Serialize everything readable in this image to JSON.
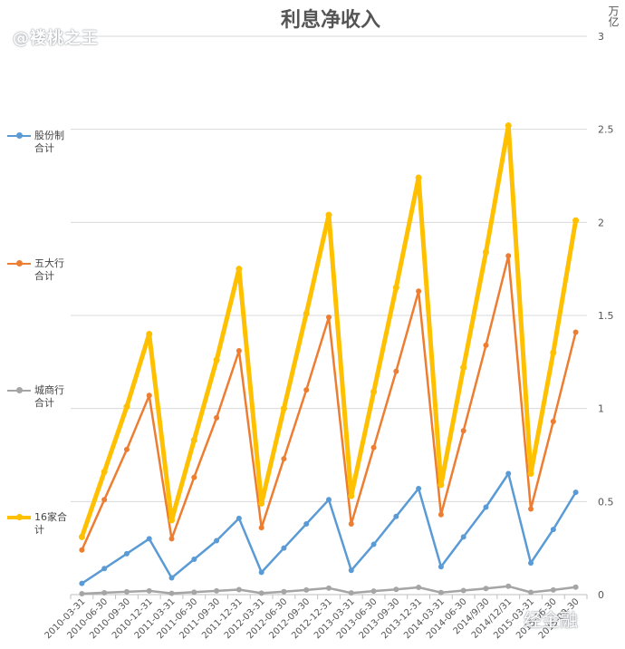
{
  "watermark": "@褛桃之王",
  "watermark_br": "经金融",
  "unit": "万亿",
  "chart_data": {
    "type": "line",
    "title": "利息净收入",
    "xlabel": "",
    "ylabel": "万亿",
    "ylim": [
      0,
      3
    ],
    "yticks": [
      "0",
      "0.5",
      "1",
      "1.5",
      "2",
      "2.5",
      "3"
    ],
    "grid": true,
    "legend_position": "left",
    "categories": [
      "2010-03-31",
      "2010-06-30",
      "2010-09-30",
      "2010-12-31",
      "2011-03-31",
      "2011-06-30",
      "2011-09-30",
      "2011-12-31",
      "2012-03-31",
      "2012-06-30",
      "2012-09-30",
      "2012-12-31",
      "2013-03-31",
      "2013-06-30",
      "2013-09-30",
      "2013-12-31",
      "2014-03-31",
      "2014-06-30",
      "2014/9/30",
      "2014/12/31",
      "2015-03-31",
      "2015-06-30",
      "2015-09-30"
    ],
    "series": [
      {
        "name": "股份制合计",
        "label": "股份制\n合计",
        "color": "#5b9bd5",
        "width": 2.5,
        "values": [
          0.06,
          0.14,
          0.22,
          0.3,
          0.09,
          0.19,
          0.29,
          0.41,
          0.12,
          0.25,
          0.38,
          0.51,
          0.13,
          0.27,
          0.42,
          0.57,
          0.15,
          0.31,
          0.47,
          0.65,
          0.17,
          0.35,
          0.55
        ]
      },
      {
        "name": "五大行合计",
        "label": "五大行\n合计",
        "color": "#ed7d31",
        "width": 2.5,
        "values": [
          0.24,
          0.51,
          0.78,
          1.07,
          0.3,
          0.63,
          0.95,
          1.31,
          0.36,
          0.73,
          1.1,
          1.49,
          0.38,
          0.79,
          1.2,
          1.63,
          0.43,
          0.88,
          1.34,
          1.82,
          0.46,
          0.93,
          1.41
        ]
      },
      {
        "name": "城商行合计",
        "label": "城商行\n合计",
        "color": "#a5a5a5",
        "width": 2.5,
        "values": [
          0.005,
          0.01,
          0.015,
          0.02,
          0.007,
          0.013,
          0.02,
          0.027,
          0.008,
          0.016,
          0.025,
          0.035,
          0.009,
          0.019,
          0.028,
          0.039,
          0.011,
          0.022,
          0.033,
          0.045,
          0.012,
          0.025,
          0.04
        ]
      },
      {
        "name": "16家合计",
        "label": "16家合\n计",
        "color": "#ffc000",
        "width": 5,
        "values": [
          0.31,
          0.66,
          1.01,
          1.4,
          0.4,
          0.83,
          1.26,
          1.75,
          0.49,
          1.0,
          1.51,
          2.04,
          0.53,
          1.09,
          1.65,
          2.24,
          0.59,
          1.22,
          1.84,
          2.52,
          0.65,
          1.3,
          2.01
        ]
      }
    ]
  }
}
